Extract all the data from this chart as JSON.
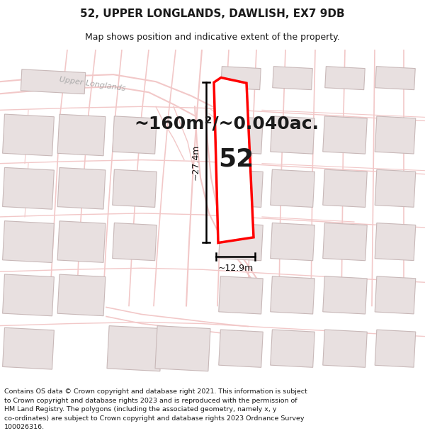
{
  "title_line1": "52, UPPER LONGLANDS, DAWLISH, EX7 9DB",
  "title_line2": "Map shows position and indicative extent of the property.",
  "area_text": "~160m²/~0.040ac.",
  "label_52": "52",
  "dim_height": "~27.4m",
  "dim_width": "~12.9m",
  "footer_text": "Contains OS data © Crown copyright and database right 2021. This information is subject\nto Crown copyright and database rights 2023 and is reproduced with the permission of\nHM Land Registry. The polygons (including the associated geometry, namely x, y\nco-ordinates) are subject to Crown copyright and database rights 2023 Ordnance Survey\n100026316.",
  "bg_color": "#ffffff",
  "map_bg": "#ffffff",
  "road_color": "#f2c8c8",
  "building_color": "#e8e0e0",
  "building_edge": "#c8b8b8",
  "highlight_color": "#ff0000",
  "text_color": "#1a1a1a",
  "dim_color": "#111111",
  "road_label_color": "#aaaaaa",
  "title_fontsize": 11,
  "subtitle_fontsize": 9,
  "area_fontsize": 18,
  "footer_fontsize": 6.8,
  "label52_fontsize": 26,
  "dim_fontsize": 9
}
